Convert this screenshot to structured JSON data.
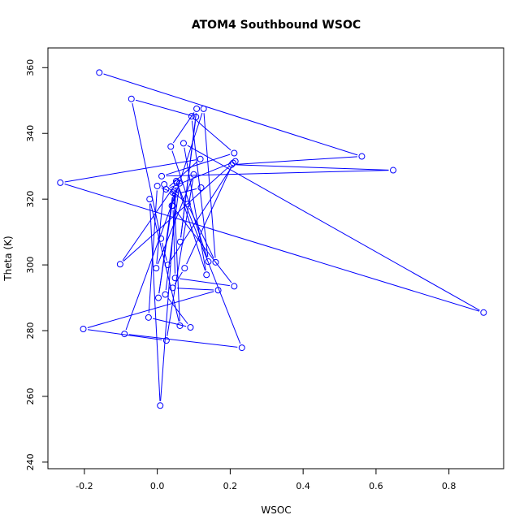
{
  "chart_data": {
    "type": "line",
    "title": "ATOM4 Southbound WSOC",
    "xlabel": "WSOC",
    "ylabel": "Theta (K)",
    "xlim": [
      -0.3,
      0.95
    ],
    "ylim": [
      238,
      366
    ],
    "x_ticks": [
      -0.2,
      0.0,
      0.2,
      0.4,
      0.6,
      0.8
    ],
    "x_tick_labels": [
      "-0.2",
      "0.0",
      "0.2",
      "0.4",
      "0.6",
      "0.8"
    ],
    "y_ticks": [
      240,
      260,
      280,
      300,
      320,
      340,
      360
    ],
    "y_tick_labels": [
      "240",
      "260",
      "280",
      "300",
      "320",
      "340",
      "360"
    ],
    "series_color": "#0000ff",
    "markers": "open-circle",
    "grid": false,
    "series": [
      {
        "x": [
          -0.159,
          0.561,
          0.204,
          0.647,
          0.012,
          0.211,
          0.094,
          0.14,
          0.037,
          0.108,
          0.063,
          0.106,
          -0.071,
          0.01,
          0.029,
          0.214,
          0.024,
          0.118,
          -0.266,
          0.895,
          0.072,
          0.135,
          0.052,
          0.232,
          -0.09,
          0.061,
          0.022,
          0.091,
          -0.024,
          0.0,
          0.043,
          0.003,
          0.046,
          0.062,
          -0.021,
          0.008,
          0.053,
          -0.102,
          0.208,
          0.075,
          0.042,
          0.167,
          -0.203,
          0.025,
          0.1,
          -0.003,
          0.019,
          0.083,
          0.16,
          0.127,
          0.04,
          0.211,
          0.049,
          0.043,
          0.05,
          0.12
        ],
        "y": [
          358.5,
          333.0,
          330.5,
          328.8,
          327.0,
          334.0,
          345.2,
          301.0,
          336.0,
          347.5,
          307.0,
          345.0,
          350.5,
          308.0,
          300.0,
          331.5,
          323.0,
          332.2,
          325.0,
          285.5,
          337.0,
          297.0,
          325.5,
          274.8,
          279.0,
          324.8,
          291.0,
          281.0,
          284.0,
          324.0,
          322.0,
          290.0,
          322.5,
          281.5,
          320.0,
          257.2,
          325.0,
          300.2,
          331.0,
          299.0,
          293.0,
          292.3,
          280.5,
          277.0,
          327.5,
          299.0,
          324.5,
          318.5,
          300.8,
          347.5,
          318.0,
          293.5,
          296.0,
          318.0,
          321.5,
          323.5
        ]
      }
    ]
  }
}
